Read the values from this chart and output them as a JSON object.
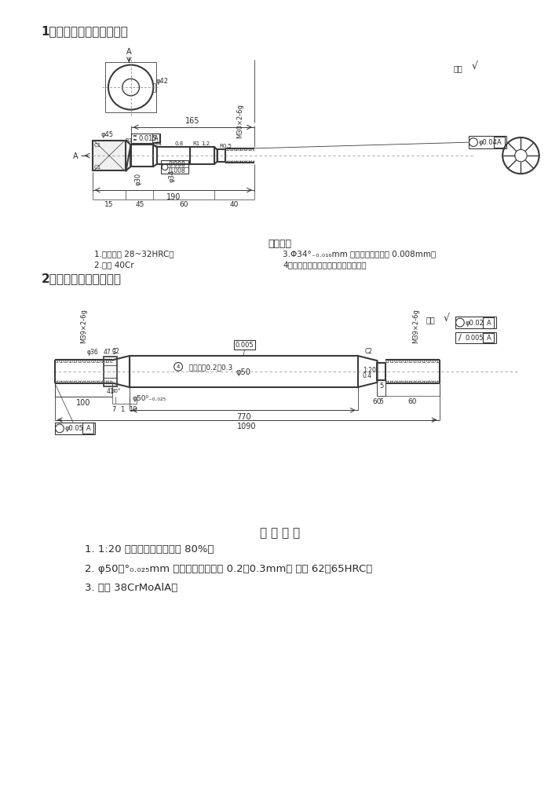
{
  "title1": "1、连杆联钉，毛块为锄件",
  "title2": "2、活塞杆，毛块为锄件",
  "tech_title1": "技术要求",
  "tech1_line1": "1.调质处理 28~32HRC。",
  "tech1_line2": "2.材料 40Cr",
  "tech1_line3": "3.Φ34°₋₀.₀₁₆mm 圆度、圆柱公差为 0.008mm。",
  "tech1_line4": "4、磁粉探伤，无裂纹，夹渣等缺陷。",
  "tech_title2": "技 术 要 求",
  "tech2_line1": "1. 1:20 锥度接触面积不少于 80%。",
  "tech2_line2": "2. φ50－°₀.₀₂₅mm 部分氮化层深度为 0.2～0.3mm， 硬度 62～65HRC。",
  "tech2_line3": "3. 材料 38CrMoAlA。",
  "bg_color": "#ffffff",
  "line_color": "#3a3a3a",
  "text_color": "#2a2a2a"
}
